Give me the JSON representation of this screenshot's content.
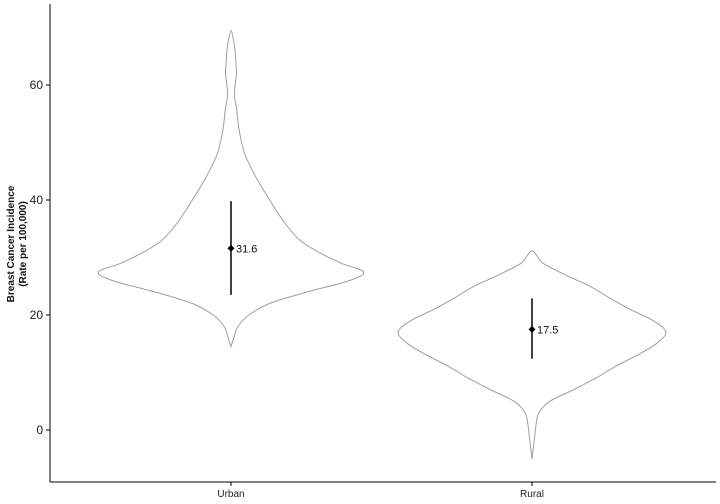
{
  "chart_data": {
    "type": "violin",
    "title": "",
    "xlabel": "",
    "ylabel": "Breast Cancer Incidence",
    "ylabel_line2": "(Rate per 100,000)",
    "ylim": [
      -9,
      74
    ],
    "yticks": [
      0,
      20,
      40,
      60
    ],
    "categories": [
      "Urban",
      "Rural"
    ],
    "violins": [
      {
        "category": "Urban",
        "min": 14.5,
        "max": 69.5,
        "mean": 31.6,
        "mean_label": "31.6",
        "interval": [
          23.5,
          39.8
        ],
        "density": [
          [
            14.5,
            0.0
          ],
          [
            16,
            0.02
          ],
          [
            18,
            0.05
          ],
          [
            20,
            0.13
          ],
          [
            22,
            0.28
          ],
          [
            24,
            0.55
          ],
          [
            26,
            0.86
          ],
          [
            27.5,
            0.96
          ],
          [
            29,
            0.8
          ],
          [
            31,
            0.63
          ],
          [
            33,
            0.5
          ],
          [
            36,
            0.39
          ],
          [
            40,
            0.28
          ],
          [
            44,
            0.18
          ],
          [
            48,
            0.1
          ],
          [
            52,
            0.06
          ],
          [
            56,
            0.04
          ],
          [
            58,
            0.025
          ],
          [
            60,
            0.03
          ],
          [
            62,
            0.04
          ],
          [
            64,
            0.035
          ],
          [
            66,
            0.03
          ],
          [
            67.5,
            0.02
          ],
          [
            69.5,
            0.0
          ]
        ]
      },
      {
        "category": "Rural",
        "min": -5,
        "max": 31.2,
        "mean": 17.5,
        "mean_label": "17.5",
        "interval": [
          12.4,
          22.9
        ],
        "density": [
          [
            -5,
            0.0
          ],
          [
            -3,
            0.01
          ],
          [
            -1,
            0.02
          ],
          [
            1,
            0.03
          ],
          [
            3,
            0.05
          ],
          [
            5,
            0.13
          ],
          [
            7,
            0.3
          ],
          [
            9,
            0.46
          ],
          [
            11,
            0.6
          ],
          [
            13,
            0.76
          ],
          [
            15,
            0.9
          ],
          [
            17,
            0.97
          ],
          [
            19,
            0.88
          ],
          [
            21,
            0.71
          ],
          [
            23,
            0.56
          ],
          [
            25,
            0.42
          ],
          [
            27,
            0.24
          ],
          [
            29,
            0.08
          ],
          [
            30.5,
            0.03
          ],
          [
            31.2,
            0.0
          ]
        ]
      }
    ],
    "violin_color": "#9e9e9e",
    "point_color": "#000000",
    "grid": false
  }
}
